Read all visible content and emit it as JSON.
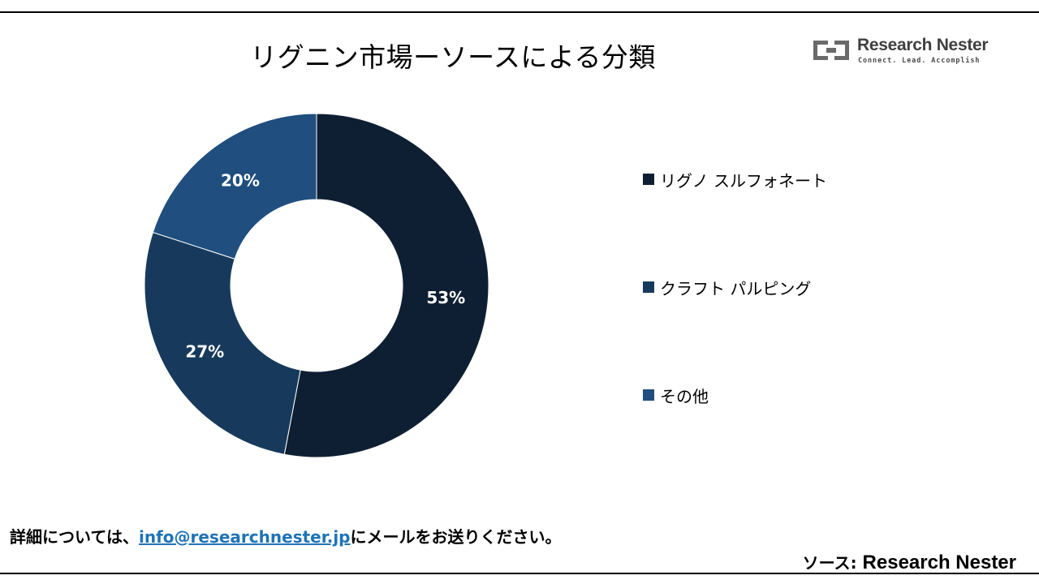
{
  "title": "リグニン市場ーソースによる分類",
  "logo": {
    "name": "Research Nester",
    "tagline": "Connect. Lead. Accomplish",
    "color": "#6a6a6a"
  },
  "chart_data": {
    "type": "pie",
    "style": "donut",
    "title": "リグニン市場ーソースによる分類",
    "categories": [
      "リグノ スルフォネート",
      "クラフト パルピング",
      "その他"
    ],
    "values": [
      53,
      27,
      20
    ],
    "data_labels": [
      "53%",
      "27%",
      "20%"
    ],
    "colors": [
      "#0f1f33",
      "#173a5c",
      "#1f4e7f"
    ],
    "legend_position": "right",
    "start_angle_deg": 0,
    "direction": "clockwise"
  },
  "footer": {
    "contact_prefix": "詳細については、",
    "contact_email": "info@researchnester.jp",
    "contact_suffix": "にメールをお送りください。",
    "source_label": "ソース: ",
    "source_name": "Research Nester"
  }
}
